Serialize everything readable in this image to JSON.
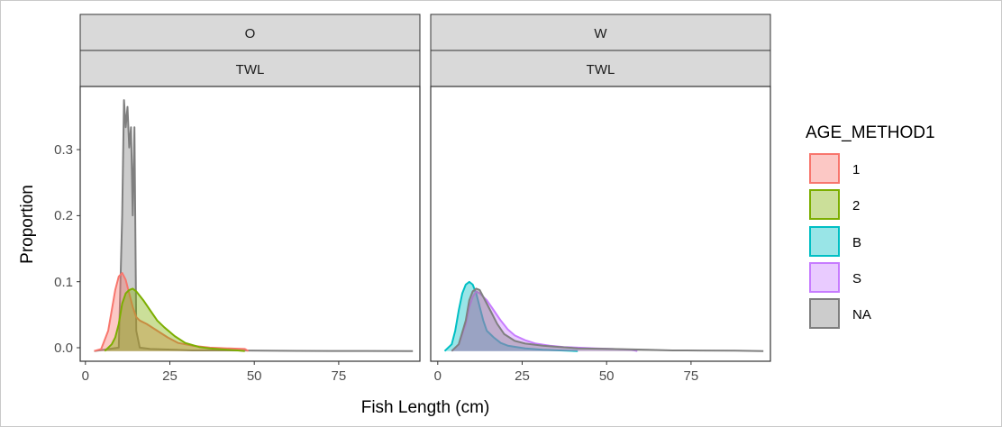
{
  "chart_data": {
    "type": "area",
    "xlabel": "Fish Length (cm)",
    "ylabel": "Proportion",
    "xlim": [
      -2,
      95
    ],
    "ylim": [
      -0.015,
      0.39
    ],
    "x_ticks": [
      0,
      25,
      50,
      75
    ],
    "x_tick_labels": [
      "0",
      "25",
      "50",
      "75"
    ],
    "y_ticks": [
      0.0,
      0.1,
      0.2,
      0.3
    ],
    "y_tick_labels": [
      "0.0",
      "0.1",
      "0.2",
      "0.3"
    ],
    "legend": {
      "title": "AGE_METHOD1",
      "placement": "right",
      "entries": [
        {
          "key": "1",
          "label": "1",
          "color": "#F8766D"
        },
        {
          "key": "2",
          "label": "2",
          "color": "#7CAE00"
        },
        {
          "key": "B",
          "label": "B",
          "color": "#00BFC4"
        },
        {
          "key": "S",
          "label": "S",
          "color": "#C77CFF"
        },
        {
          "key": "NA",
          "label": "NA",
          "color": "#7F7F7F"
        }
      ]
    },
    "panels": [
      {
        "strip_top": "O",
        "strip_bottom": "TWL",
        "series": [
          {
            "name": "NA",
            "color": "#7F7F7F",
            "points": [
              [
                2,
                0
              ],
              [
                9,
                0.005
              ],
              [
                10,
                0.2
              ],
              [
                10.5,
                0.37
              ],
              [
                11,
                0.33
              ],
              [
                11.5,
                0.36
              ],
              [
                12,
                0.3
              ],
              [
                12.5,
                0.33
              ],
              [
                13,
                0.2
              ],
              [
                13.5,
                0.33
              ],
              [
                14,
                0.03
              ],
              [
                15,
                0.005
              ],
              [
                18,
                0.003
              ],
              [
                25,
                0.002
              ],
              [
                30,
                0.001
              ],
              [
                40,
                0.001
              ],
              [
                50,
                0.0005
              ],
              [
                60,
                0.0003
              ],
              [
                70,
                0.0002
              ],
              [
                80,
                0.0001
              ],
              [
                93,
                0
              ]
            ]
          },
          {
            "name": "1",
            "color": "#F8766D",
            "points": [
              [
                2,
                0.0
              ],
              [
                4,
                0.003
              ],
              [
                6,
                0.03
              ],
              [
                7,
                0.06
              ],
              [
                8,
                0.09
              ],
              [
                9,
                0.11
              ],
              [
                10,
                0.115
              ],
              [
                11,
                0.105
              ],
              [
                12,
                0.085
              ],
              [
                13,
                0.065
              ],
              [
                14,
                0.05
              ],
              [
                15,
                0.045
              ],
              [
                17,
                0.04
              ],
              [
                20,
                0.03
              ],
              [
                23,
                0.02
              ],
              [
                26,
                0.012
              ],
              [
                30,
                0.008
              ],
              [
                35,
                0.005
              ],
              [
                40,
                0.004
              ],
              [
                45,
                0.003
              ],
              [
                46,
                0.0
              ]
            ]
          },
          {
            "name": "2",
            "color": "#7CAE00",
            "points": [
              [
                5,
                0.0
              ],
              [
                7,
                0.01
              ],
              [
                8,
                0.02
              ],
              [
                9,
                0.04
              ],
              [
                10,
                0.07
              ],
              [
                11,
                0.085
              ],
              [
                12,
                0.09
              ],
              [
                13,
                0.092
              ],
              [
                14,
                0.088
              ],
              [
                16,
                0.075
              ],
              [
                18,
                0.06
              ],
              [
                20,
                0.045
              ],
              [
                22,
                0.035
              ],
              [
                25,
                0.022
              ],
              [
                28,
                0.012
              ],
              [
                32,
                0.006
              ],
              [
                35,
                0.004
              ],
              [
                40,
                0.002
              ],
              [
                43,
                0.001
              ],
              [
                45,
                0.0
              ]
            ]
          }
        ]
      },
      {
        "strip_top": "W",
        "strip_bottom": "TWL",
        "series": [
          {
            "name": "B",
            "color": "#00BFC4",
            "points": [
              [
                2,
                0.0
              ],
              [
                4,
                0.01
              ],
              [
                5,
                0.03
              ],
              [
                6,
                0.06
              ],
              [
                7,
                0.085
              ],
              [
                8,
                0.098
              ],
              [
                9,
                0.102
              ],
              [
                10,
                0.098
              ],
              [
                11,
                0.085
              ],
              [
                12,
                0.065
              ],
              [
                13,
                0.045
              ],
              [
                14,
                0.03
              ],
              [
                16,
                0.02
              ],
              [
                18,
                0.012
              ],
              [
                20,
                0.008
              ],
              [
                25,
                0.004
              ],
              [
                30,
                0.002
              ],
              [
                35,
                0.001
              ],
              [
                40,
                0.0
              ]
            ]
          },
          {
            "name": "S",
            "color": "#C77CFF",
            "points": [
              [
                4,
                0.0
              ],
              [
                6,
                0.01
              ],
              [
                8,
                0.04
              ],
              [
                9,
                0.065
              ],
              [
                10,
                0.08
              ],
              [
                11,
                0.088
              ],
              [
                12,
                0.085
              ],
              [
                14,
                0.075
              ],
              [
                16,
                0.06
              ],
              [
                18,
                0.045
              ],
              [
                20,
                0.032
              ],
              [
                22,
                0.023
              ],
              [
                25,
                0.016
              ],
              [
                28,
                0.011
              ],
              [
                32,
                0.008
              ],
              [
                36,
                0.006
              ],
              [
                40,
                0.005
              ],
              [
                45,
                0.004
              ],
              [
                50,
                0.003
              ],
              [
                55,
                0.002
              ],
              [
                57,
                0.0
              ]
            ]
          },
          {
            "name": "NA",
            "color": "#7F7F7F",
            "points": [
              [
                4,
                0.0
              ],
              [
                6,
                0.01
              ],
              [
                8,
                0.045
              ],
              [
                9,
                0.075
              ],
              [
                10,
                0.088
              ],
              [
                11,
                0.092
              ],
              [
                12,
                0.09
              ],
              [
                13,
                0.08
              ],
              [
                15,
                0.06
              ],
              [
                17,
                0.04
              ],
              [
                19,
                0.025
              ],
              [
                22,
                0.015
              ],
              [
                25,
                0.011
              ],
              [
                30,
                0.008
              ],
              [
                35,
                0.006
              ],
              [
                40,
                0.004
              ],
              [
                50,
                0.003
              ],
              [
                60,
                0.002
              ],
              [
                67,
                0.001
              ],
              [
                75,
                0.0008
              ],
              [
                85,
                0.0005
              ],
              [
                93,
                0.0
              ]
            ]
          }
        ]
      }
    ]
  }
}
